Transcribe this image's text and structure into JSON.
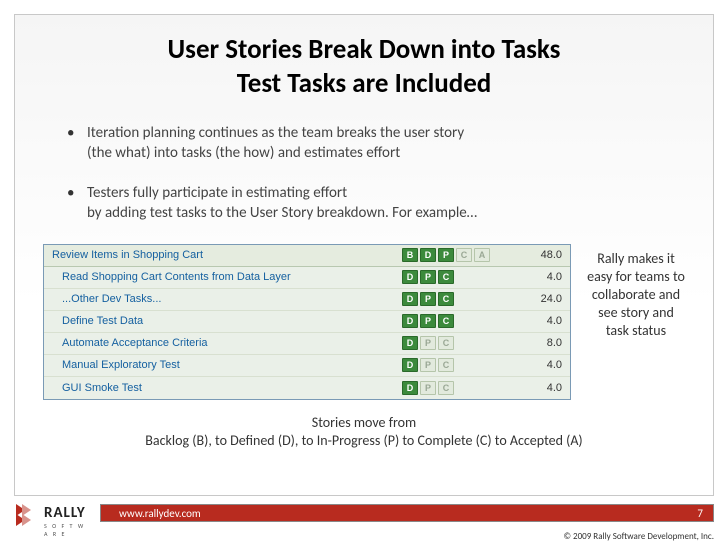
{
  "title_line1": "User Stories Break Down into Tasks",
  "title_line2": "Test Tasks are Included",
  "bullet1_line1": "Iteration planning continues as the team breaks the user story",
  "bullet1_line2": "(the what) into tasks (the how) and estimates effort",
  "bullet2_line1": "Testers fully participate in estimating effort",
  "bullet2_line2": "by adding test tasks to the User Story breakdown.  For example…",
  "panel": {
    "status_letters": [
      "B",
      "D",
      "P",
      "C",
      "A"
    ],
    "header": {
      "name": "Review Items in Shopping Cart",
      "states": [
        "on",
        "on",
        "on",
        "off",
        "off"
      ],
      "value": "48.0"
    },
    "rows": [
      {
        "name": "Read Shopping Cart Contents from Data Layer",
        "states": [
          "on",
          "on",
          "on"
        ],
        "value": "4.0"
      },
      {
        "name": "...Other Dev Tasks...",
        "states": [
          "on",
          "on",
          "on"
        ],
        "value": "24.0"
      },
      {
        "name": "Define Test Data",
        "states": [
          "on",
          "on",
          "on"
        ],
        "value": "4.0"
      },
      {
        "name": "Automate Acceptance Criteria",
        "states": [
          "on",
          "off",
          "off"
        ],
        "value": "8.0"
      },
      {
        "name": "Manual Exploratory Test",
        "states": [
          "on",
          "off",
          "off"
        ],
        "value": "4.0"
      },
      {
        "name": "GUI Smoke Test",
        "states": [
          "on",
          "off",
          "off"
        ],
        "value": "4.0"
      }
    ]
  },
  "side_note": "Rally makes it easy for teams to collaborate and see story and task status",
  "caption_line1": "Stories move from",
  "caption_line2": "Backlog (B), to Defined (D), to In-Progress (P) to Complete (C) to Accepted (A)",
  "footer": {
    "url": "www.rallydev.com",
    "page": "7",
    "copyright": "© 2009 Rally Software Development, Inc.",
    "logo_text": "RALLY",
    "logo_sub": "S O F T W A R E"
  },
  "colors": {
    "green_on": "#3c8a3c",
    "footer_bar": "#b82b1f",
    "link": "#1560a0"
  }
}
